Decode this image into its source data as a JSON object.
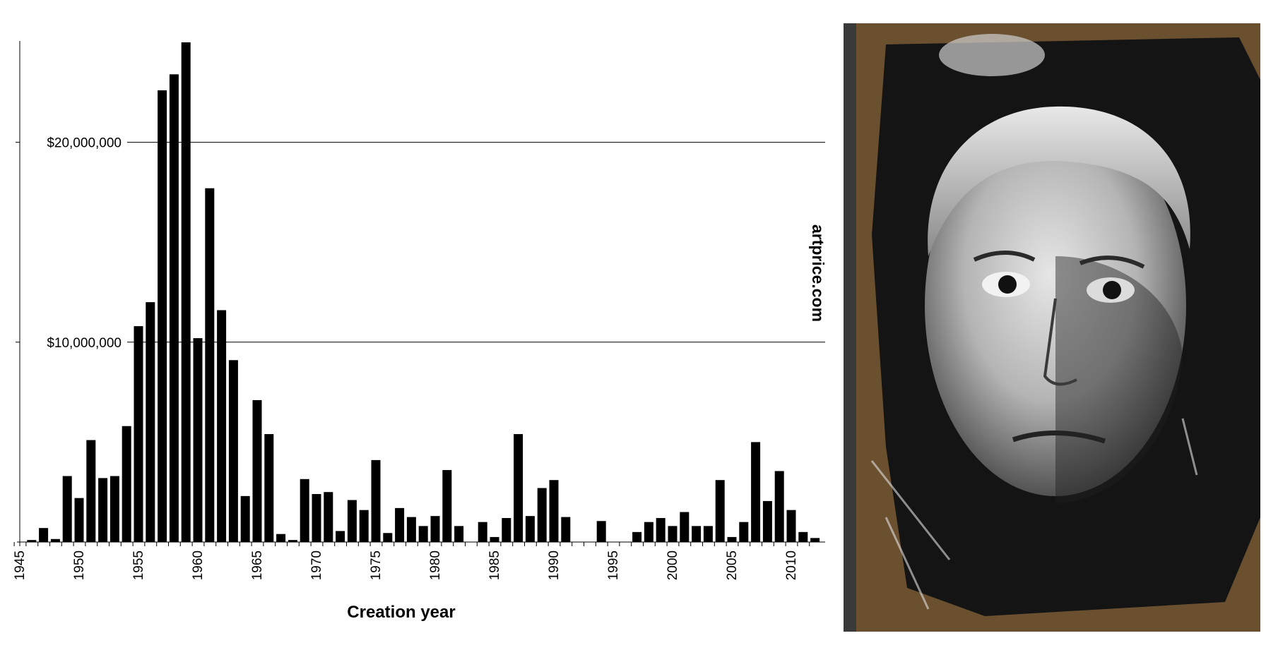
{
  "chart_data": {
    "type": "bar",
    "xlabel": "Creation year",
    "ylabel": "",
    "watermark": "artprice.com",
    "x": [
      1946,
      1947,
      1948,
      1949,
      1950,
      1951,
      1952,
      1953,
      1954,
      1955,
      1956,
      1957,
      1958,
      1959,
      1960,
      1961,
      1962,
      1963,
      1964,
      1965,
      1966,
      1967,
      1968,
      1969,
      1970,
      1971,
      1972,
      1973,
      1974,
      1975,
      1976,
      1977,
      1978,
      1979,
      1980,
      1981,
      1982,
      1983,
      1984,
      1985,
      1986,
      1987,
      1988,
      1989,
      1990,
      1991,
      1992,
      1993,
      1994,
      1995,
      1996,
      1997,
      1998,
      1999,
      2000,
      2001,
      2002,
      2003,
      2004,
      2005,
      2006,
      2007,
      2008,
      2009,
      2010,
      2011,
      2012
    ],
    "values": [
      100000,
      700000,
      150000,
      3300000,
      2200000,
      5100000,
      3200000,
      3300000,
      5800000,
      10800000,
      12000000,
      22600000,
      23400000,
      25000000,
      10200000,
      17700000,
      11600000,
      9100000,
      2300000,
      7100000,
      5400000,
      400000,
      100000,
      3150000,
      2400000,
      2500000,
      550000,
      2100000,
      1600000,
      4100000,
      450000,
      1700000,
      1250000,
      800000,
      1300000,
      3600000,
      800000,
      0,
      1000000,
      250000,
      1200000,
      5400000,
      1300000,
      2700000,
      3100000,
      1250000,
      0,
      0,
      1050000,
      0,
      0,
      500000,
      1000000,
      1200000,
      800000,
      1500000,
      800000,
      800000,
      3100000,
      250000,
      1000000,
      5000000,
      2050000,
      3550000,
      1600000,
      500000,
      200000
    ],
    "ylim": [
      0,
      25000000
    ],
    "yticks": [
      10000000,
      20000000
    ],
    "ytick_labels": [
      "$10,000,000",
      "$20,000,000"
    ],
    "xticks": [
      1945,
      1950,
      1955,
      1960,
      1965,
      1970,
      1975,
      1980,
      1985,
      1990,
      1995,
      2000,
      2005,
      2010
    ],
    "grid": true,
    "bar_color": "#000000"
  },
  "portrait": {
    "subject": "street-art-portrait",
    "colors": {
      "background": "#1a1a1a",
      "wall": "#6b5030",
      "face": "#d0d0d0"
    }
  }
}
